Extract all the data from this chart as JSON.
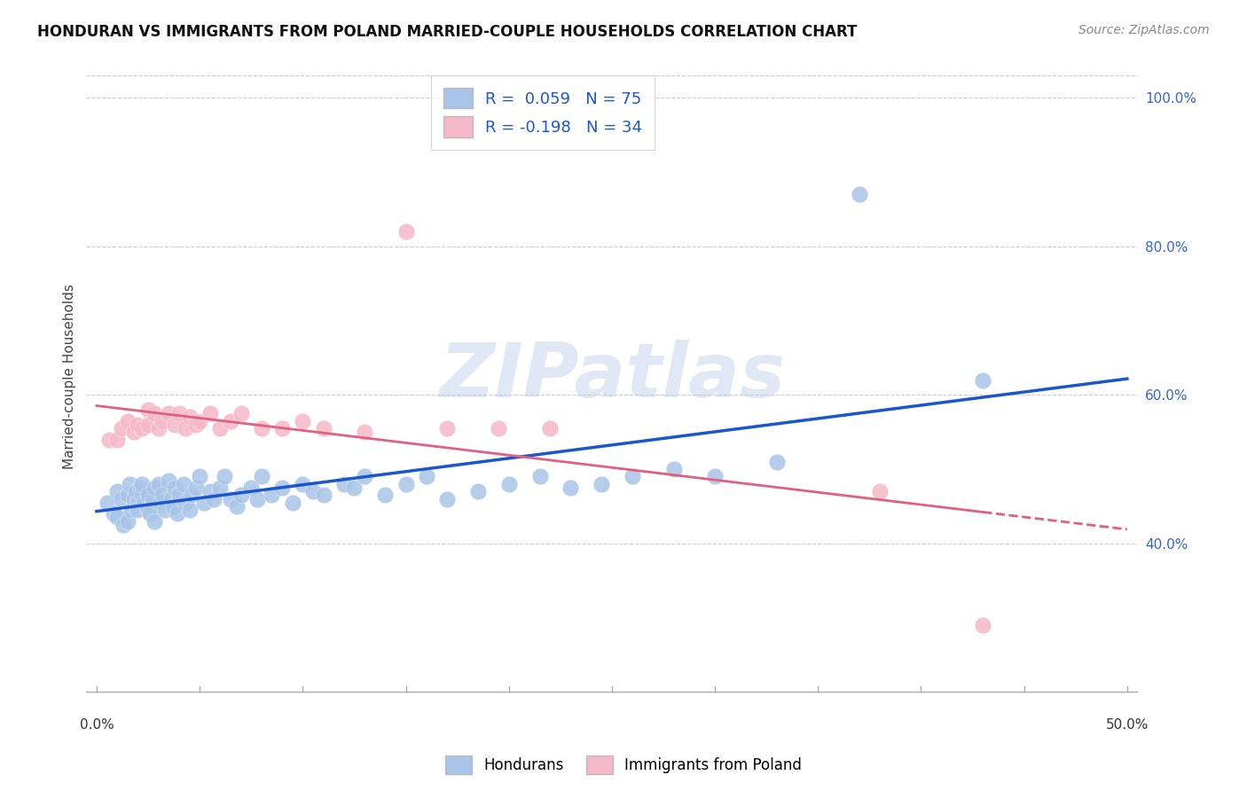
{
  "title": "HONDURAN VS IMMIGRANTS FROM POLAND MARRIED-COUPLE HOUSEHOLDS CORRELATION CHART",
  "source": "Source: ZipAtlas.com",
  "ylabel": "Married-couple Households",
  "yticks": [
    "40.0%",
    "60.0%",
    "80.0%",
    "100.0%"
  ],
  "ytick_vals": [
    0.4,
    0.6,
    0.8,
    1.0
  ],
  "xlim": [
    0.0,
    0.5
  ],
  "ylim": [
    0.2,
    1.05
  ],
  "blue_color": "#a8c4e8",
  "pink_color": "#f5b8c8",
  "blue_line_color": "#1a56cc",
  "pink_line_color": "#e06080",
  "legend_label_blue": "Hondurans",
  "legend_label_pink": "Immigrants from Poland",
  "R_blue": 0.059,
  "R_pink": -0.198,
  "N_blue": 75,
  "N_pink": 34,
  "watermark": "ZIPatlas",
  "blue_scatter_x": [
    0.005,
    0.008,
    0.01,
    0.01,
    0.012,
    0.013,
    0.015,
    0.015,
    0.016,
    0.017,
    0.018,
    0.019,
    0.02,
    0.02,
    0.021,
    0.022,
    0.022,
    0.023,
    0.025,
    0.025,
    0.026,
    0.027,
    0.028,
    0.028,
    0.03,
    0.031,
    0.032,
    0.033,
    0.035,
    0.036,
    0.037,
    0.038,
    0.039,
    0.04,
    0.042,
    0.043,
    0.045,
    0.046,
    0.048,
    0.05,
    0.052,
    0.055,
    0.057,
    0.06,
    0.062,
    0.065,
    0.068,
    0.07,
    0.075,
    0.078,
    0.08,
    0.085,
    0.09,
    0.095,
    0.1,
    0.105,
    0.11,
    0.12,
    0.125,
    0.13,
    0.14,
    0.15,
    0.16,
    0.17,
    0.185,
    0.2,
    0.215,
    0.23,
    0.245,
    0.26,
    0.28,
    0.3,
    0.33,
    0.37,
    0.43
  ],
  "blue_scatter_y": [
    0.455,
    0.44,
    0.47,
    0.435,
    0.46,
    0.425,
    0.465,
    0.43,
    0.48,
    0.445,
    0.46,
    0.47,
    0.455,
    0.445,
    0.475,
    0.465,
    0.48,
    0.455,
    0.465,
    0.445,
    0.44,
    0.46,
    0.475,
    0.43,
    0.48,
    0.455,
    0.465,
    0.445,
    0.485,
    0.46,
    0.45,
    0.475,
    0.44,
    0.465,
    0.48,
    0.455,
    0.445,
    0.465,
    0.475,
    0.49,
    0.455,
    0.47,
    0.46,
    0.475,
    0.49,
    0.46,
    0.45,
    0.465,
    0.475,
    0.46,
    0.49,
    0.465,
    0.475,
    0.455,
    0.48,
    0.47,
    0.465,
    0.48,
    0.475,
    0.49,
    0.465,
    0.48,
    0.49,
    0.46,
    0.47,
    0.48,
    0.49,
    0.475,
    0.48,
    0.49,
    0.5,
    0.49,
    0.51,
    0.87,
    0.62
  ],
  "pink_scatter_x": [
    0.006,
    0.01,
    0.012,
    0.015,
    0.018,
    0.02,
    0.022,
    0.025,
    0.025,
    0.028,
    0.03,
    0.032,
    0.035,
    0.038,
    0.04,
    0.043,
    0.045,
    0.048,
    0.05,
    0.055,
    0.06,
    0.065,
    0.07,
    0.08,
    0.09,
    0.1,
    0.11,
    0.13,
    0.15,
    0.17,
    0.195,
    0.22,
    0.38,
    0.43
  ],
  "pink_scatter_y": [
    0.54,
    0.54,
    0.555,
    0.565,
    0.55,
    0.56,
    0.555,
    0.58,
    0.56,
    0.575,
    0.555,
    0.565,
    0.575,
    0.56,
    0.575,
    0.555,
    0.57,
    0.56,
    0.565,
    0.575,
    0.555,
    0.565,
    0.575,
    0.555,
    0.555,
    0.565,
    0.555,
    0.55,
    0.82,
    0.555,
    0.555,
    0.555,
    0.47,
    0.29
  ]
}
